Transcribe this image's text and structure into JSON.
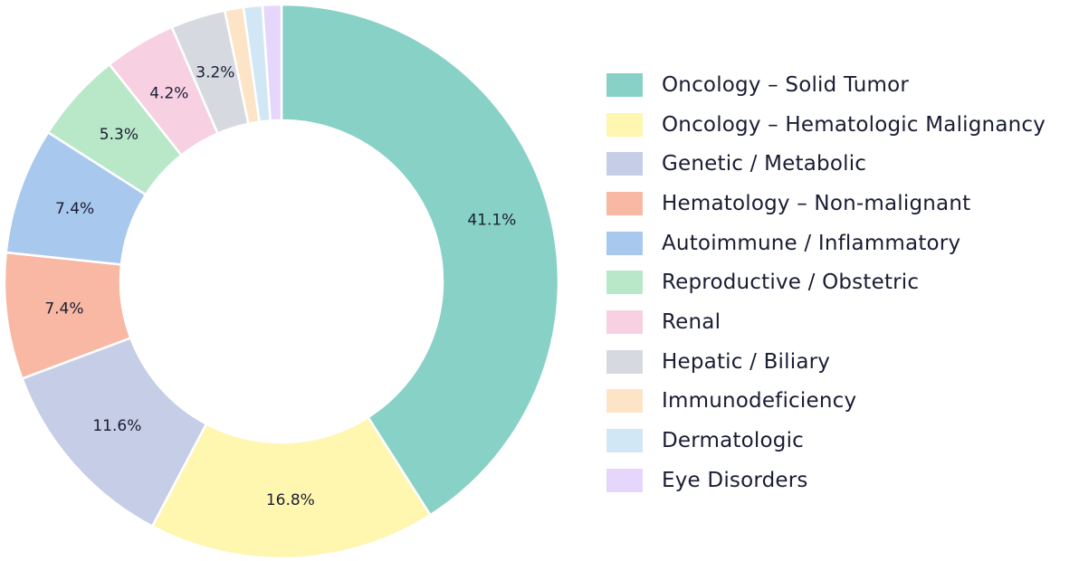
{
  "chart_data": {
    "type": "pie",
    "donut": true,
    "title": "",
    "legend_position": "right",
    "start_angle_deg": 90,
    "direction": "clockwise",
    "categories": [
      "Oncology – Solid Tumor",
      "Oncology – Hematologic Malignancy",
      "Genetic / Metabolic",
      "Hematology – Non-malignant",
      "Autoimmune / Inflammatory",
      "Reproductive / Obstetric",
      "Renal",
      "Hepatic / Biliary",
      "Immunodeficiency",
      "Dermatologic",
      "Eye Disorders"
    ],
    "values": [
      41.1,
      16.8,
      11.6,
      7.4,
      7.4,
      5.3,
      4.2,
      3.2,
      1.1,
      1.1,
      1.1
    ],
    "labels": [
      "41.1%",
      "16.8%",
      "11.6%",
      "7.4%",
      "7.4%",
      "5.3%",
      "4.2%",
      "3.2%",
      "",
      "",
      ""
    ],
    "colors": [
      "#87d1c6",
      "#fff6b0",
      "#c6cde6",
      "#f8b8a3",
      "#a8c8ee",
      "#b8e8c8",
      "#f7d0e2",
      "#d6d9e0",
      "#fde4c6",
      "#d2e7f6",
      "#e6d6fc"
    ]
  }
}
